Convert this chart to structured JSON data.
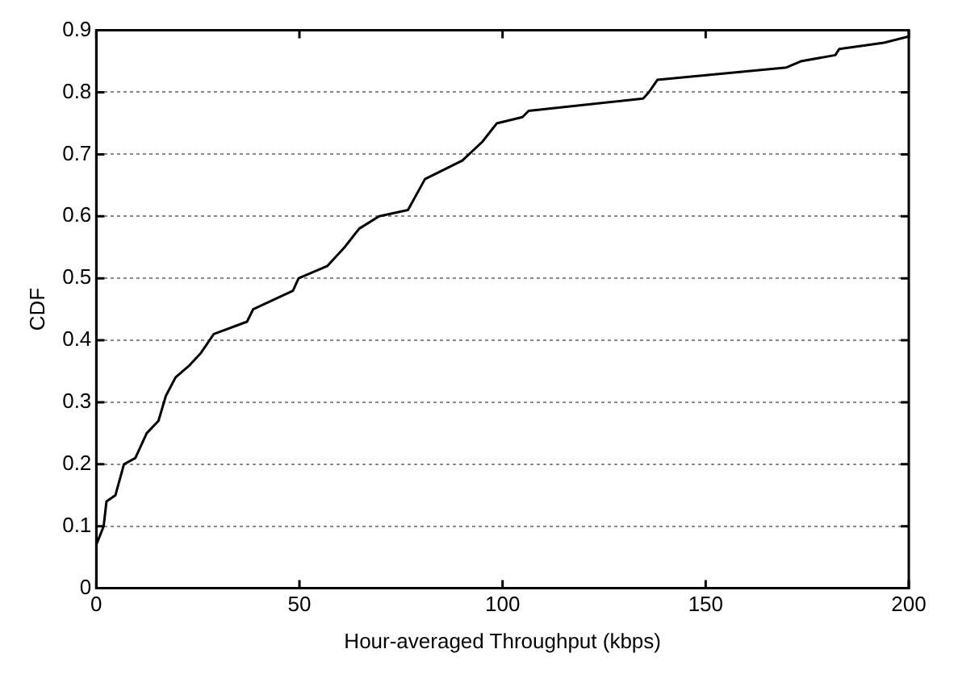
{
  "chart_data": {
    "type": "line",
    "xlabel": "Hour-averaged Throughput (kbps)",
    "ylabel": "CDF",
    "series": [
      {
        "color": "#000000",
        "x": [
          0,
          1.8,
          2.5,
          4.7,
          6.8,
          9.6,
          12.4,
          15.3,
          17.1,
          19.5,
          23,
          25.8,
          28.9,
          37.1,
          38.6,
          48.4,
          49.8,
          56.9,
          61.1,
          64.7,
          69.6,
          76.7,
          80.9,
          90.1,
          95,
          98.6,
          104.9,
          106.4,
          134.6,
          136,
          138.1,
          169.9,
          173.4,
          181.9,
          182.9,
          193.9,
          200
        ],
        "values": [
          0.07,
          0.1,
          0.14,
          0.15,
          0.2,
          0.21,
          0.25,
          0.27,
          0.31,
          0.34,
          0.36,
          0.38,
          0.41,
          0.43,
          0.45,
          0.48,
          0.5,
          0.52,
          0.55,
          0.58,
          0.6,
          0.61,
          0.66,
          0.69,
          0.72,
          0.75,
          0.76,
          0.77,
          0.79,
          0.8,
          0.82,
          0.84,
          0.85,
          0.86,
          0.87,
          0.88,
          0.89
        ]
      }
    ],
    "xlim": [
      0,
      200
    ],
    "xticks": [
      0,
      50,
      100,
      150,
      200
    ],
    "ylim": [
      0,
      0.9
    ],
    "yticks": [
      0,
      0.1,
      0.2,
      0.3,
      0.4,
      0.5,
      0.6,
      0.7,
      0.8,
      0.9
    ],
    "grid": "y",
    "legend": false,
    "marker": "none",
    "line_style": "solid"
  }
}
